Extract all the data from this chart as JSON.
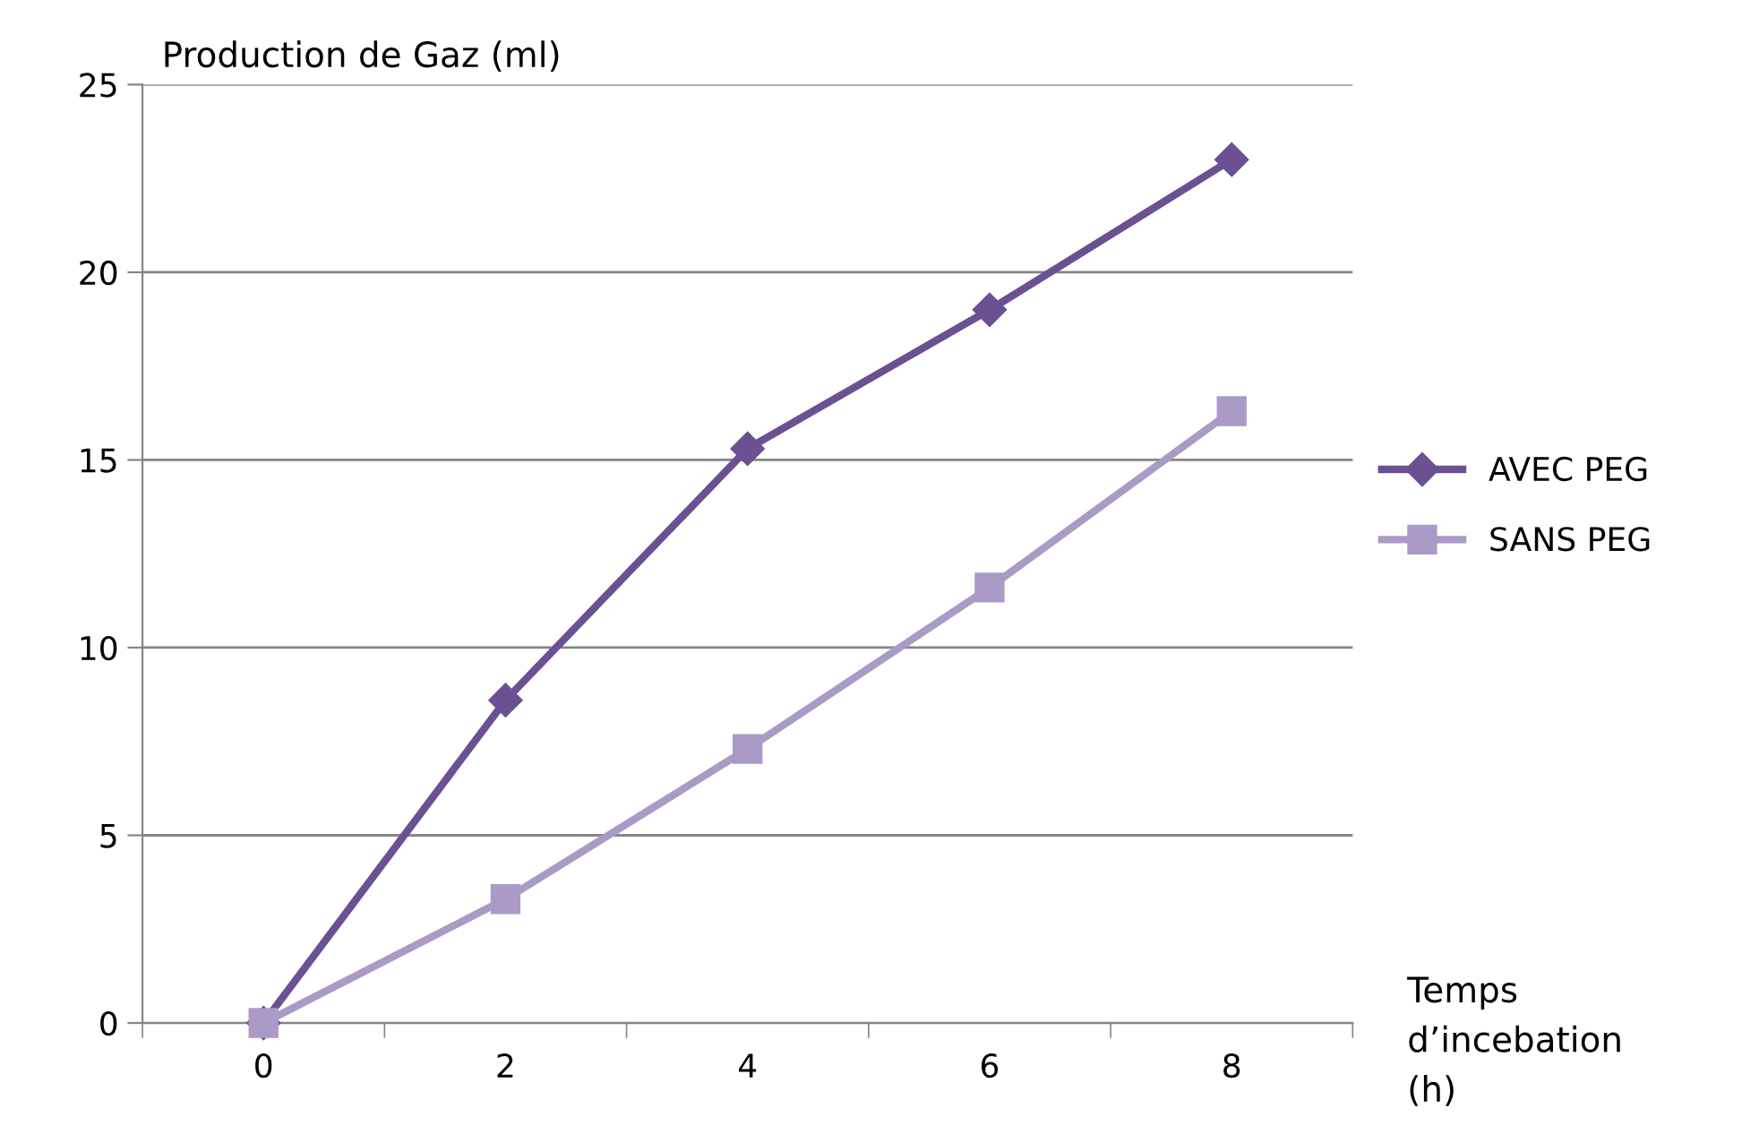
{
  "chart_data": {
    "type": "line",
    "ylabel": "Production de Gaz (ml)",
    "xlabel": "Temps d’incebation (h)",
    "categories": [
      "0",
      "2",
      "4",
      "6",
      "8"
    ],
    "series": [
      {
        "name": "AVEC PEG",
        "color": "#6b5092",
        "marker": "diamond",
        "values": [
          0,
          8.6,
          15.3,
          19,
          23
        ]
      },
      {
        "name": "SANS PEG",
        "color": "#a99bc6",
        "marker": "square",
        "values": [
          0,
          3.3,
          7.3,
          11.6,
          16.3
        ]
      }
    ],
    "ylim": [
      0,
      25
    ],
    "yticks": [
      0,
      5,
      10,
      15,
      20,
      25
    ],
    "grid": "y",
    "legend": "right",
    "line_style": "solid"
  }
}
